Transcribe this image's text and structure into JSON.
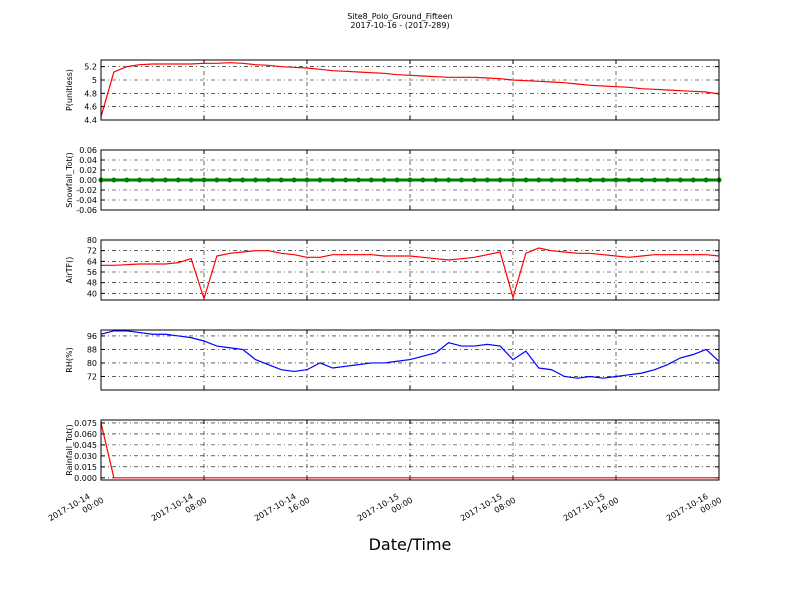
{
  "chart_data": [
    {
      "type": "line",
      "title": "Site8_Polo_Ground_Fifteen",
      "subtitle": "2017-10-16 - (2017-289)",
      "ylabel": "P(unitless)",
      "grid": true,
      "xlim": [
        "2017-10-14 00:00",
        "2017-10-16 00:00"
      ],
      "ylim": [
        4.4,
        5.3
      ],
      "yticks": [
        4.4,
        4.6,
        4.8,
        5.0,
        5.2
      ],
      "series": [
        {
          "name": "P",
          "color": "#ff0000",
          "values": [
            4.45,
            5.12,
            5.2,
            5.23,
            5.24,
            5.24,
            5.24,
            5.24,
            5.25,
            5.25,
            5.26,
            5.25,
            5.23,
            5.22,
            5.2,
            5.19,
            5.18,
            5.16,
            5.14,
            5.13,
            5.12,
            5.11,
            5.1,
            5.08,
            5.07,
            5.06,
            5.05,
            5.04,
            5.04,
            5.04,
            5.03,
            5.02,
            5.0,
            4.99,
            4.98,
            4.97,
            4.96,
            4.94,
            4.92,
            4.91,
            4.9,
            4.89,
            4.87,
            4.86,
            4.85,
            4.84,
            4.83,
            4.82,
            4.79
          ]
        }
      ]
    },
    {
      "type": "line",
      "ylabel": "Snowfall_Tot()",
      "grid": true,
      "markers": true,
      "xlim": [
        "2017-10-14 00:00",
        "2017-10-16 00:00"
      ],
      "ylim": [
        -0.06,
        0.06
      ],
      "yticks": [
        -0.06,
        -0.04,
        -0.02,
        {
          "value": 0,
          "label": "0.00"
        },
        0.02,
        0.04,
        0.06
      ],
      "series": [
        {
          "name": "Snowfall_Tot",
          "color": "#008000",
          "values": [
            0,
            0,
            0,
            0,
            0,
            0,
            0,
            0,
            0,
            0,
            0,
            0,
            0,
            0,
            0,
            0,
            0,
            0,
            0,
            0,
            0,
            0,
            0,
            0,
            0,
            0,
            0,
            0,
            0,
            0,
            0,
            0,
            0,
            0,
            0,
            0,
            0,
            0,
            0,
            0,
            0,
            0,
            0,
            0,
            0,
            0,
            0,
            0,
            0
          ]
        }
      ]
    },
    {
      "type": "line",
      "ylabel": "AirTF()",
      "grid": true,
      "xlim": [
        "2017-10-14 00:00",
        "2017-10-16 00:00"
      ],
      "ylim": [
        35,
        80
      ],
      "yticks": [
        40,
        48,
        56,
        64,
        72,
        80
      ],
      "series": [
        {
          "name": "AirTF",
          "color": "#ff0000",
          "values": [
            61,
            61,
            61.5,
            62,
            62,
            62,
            63,
            66,
            36,
            68,
            70,
            71,
            72,
            72,
            70,
            69,
            67,
            67,
            69,
            69,
            69,
            69,
            68,
            68,
            68,
            67,
            66,
            65,
            66,
            67,
            69,
            71,
            37,
            70,
            74,
            72,
            71,
            70,
            70,
            69,
            68,
            67,
            68,
            69,
            69,
            69,
            69,
            69,
            68
          ]
        }
      ]
    },
    {
      "type": "line",
      "ylabel": "RH(%)",
      "grid": true,
      "xlim": [
        "2017-10-14 00:00",
        "2017-10-16 00:00"
      ],
      "ylim": [
        64,
        99.5
      ],
      "yticks": [
        72,
        80,
        88,
        96
      ],
      "series": [
        {
          "name": "RH",
          "color": "#0000ff",
          "values": [
            97,
            99,
            99,
            98,
            97,
            97,
            96,
            95,
            93,
            90,
            89,
            88,
            82,
            79,
            76,
            75,
            76,
            80,
            77,
            78,
            79,
            80,
            80,
            81,
            82,
            84,
            86,
            92,
            90,
            90,
            91,
            90,
            82,
            87,
            77,
            76,
            72,
            71,
            72,
            71,
            72,
            73,
            74,
            76,
            79,
            83,
            85,
            88,
            81
          ]
        }
      ]
    },
    {
      "type": "line",
      "ylabel": "Rainfall_Tot()",
      "xlabel": "Date/Time",
      "grid": true,
      "xlim": [
        "2017-10-14 00:00",
        "2017-10-16 00:00"
      ],
      "ylim": [
        -0.003,
        0.079
      ],
      "yticks": [
        {
          "value": 0,
          "label": "0.000"
        },
        0.015,
        {
          "value": 0.03,
          "label": "0.030"
        },
        0.045,
        {
          "value": 0.06,
          "label": "0.060"
        },
        0.075
      ],
      "xticks": [
        "2017-10-14 00:00",
        "2017-10-14 08:00",
        "2017-10-14 16:00",
        "2017-10-15 00:00",
        "2017-10-15 08:00",
        "2017-10-15 16:00",
        "2017-10-16 00:00"
      ],
      "series": [
        {
          "name": "Rainfall_Tot",
          "color": "#ff0000",
          "values": [
            0.075,
            0,
            0,
            0,
            0,
            0,
            0,
            0,
            0,
            0,
            0,
            0,
            0,
            0,
            0,
            0,
            0,
            0,
            0,
            0,
            0,
            0,
            0,
            0,
            0,
            0,
            0,
            0,
            0,
            0,
            0,
            0,
            0,
            0,
            0,
            0,
            0,
            0,
            0,
            0,
            0,
            0,
            0,
            0,
            0,
            0,
            0,
            0,
            0
          ]
        }
      ]
    }
  ]
}
